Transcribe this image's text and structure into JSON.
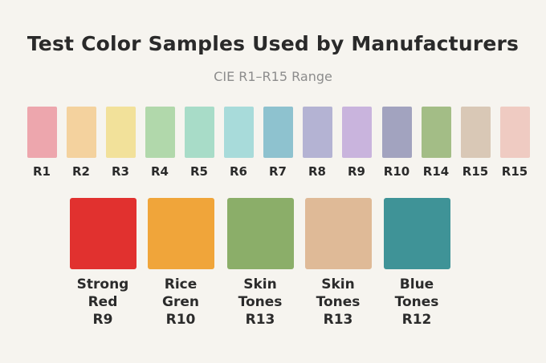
{
  "title": "Test Color Samples Used by Manufacturers",
  "subtitle": "CIE R1–R15 Range",
  "samples": [
    {
      "label": "R1",
      "color": "#eda6ad"
    },
    {
      "label": "R2",
      "color": "#f4d29e"
    },
    {
      "label": "R3",
      "color": "#f2e19a"
    },
    {
      "label": "R4",
      "color": "#b1d8ab"
    },
    {
      "label": "R5",
      "color": "#a8dcc8"
    },
    {
      "label": "R6",
      "color": "#a8dbda"
    },
    {
      "label": "R7",
      "color": "#8ec2cf"
    },
    {
      "label": "R8",
      "color": "#b4b3d3"
    },
    {
      "label": "R9",
      "color": "#c9b4dd"
    },
    {
      "label": "R10",
      "color": "#a2a3bf"
    },
    {
      "label": "R14",
      "color": "#a3bd86"
    },
    {
      "label": "R15",
      "color": "#d9c8b6"
    },
    {
      "label": "R15",
      "color": "#efcbc2"
    }
  ],
  "featured": [
    {
      "line1": "Strong",
      "line2": "Red",
      "code": "R9",
      "color": "#e1312f"
    },
    {
      "line1": "Rice",
      "line2": "Gren",
      "code": "R10",
      "color": "#f0a53a"
    },
    {
      "line1": "Skin",
      "line2": "Tones",
      "code": "R13",
      "color": "#8bae69"
    },
    {
      "line1": "Skin",
      "line2": "Tones",
      "code": "R13",
      "color": "#dfba97"
    },
    {
      "line1": "Blue",
      "line2": "Tones",
      "code": "R12",
      "color": "#3f9397"
    }
  ]
}
